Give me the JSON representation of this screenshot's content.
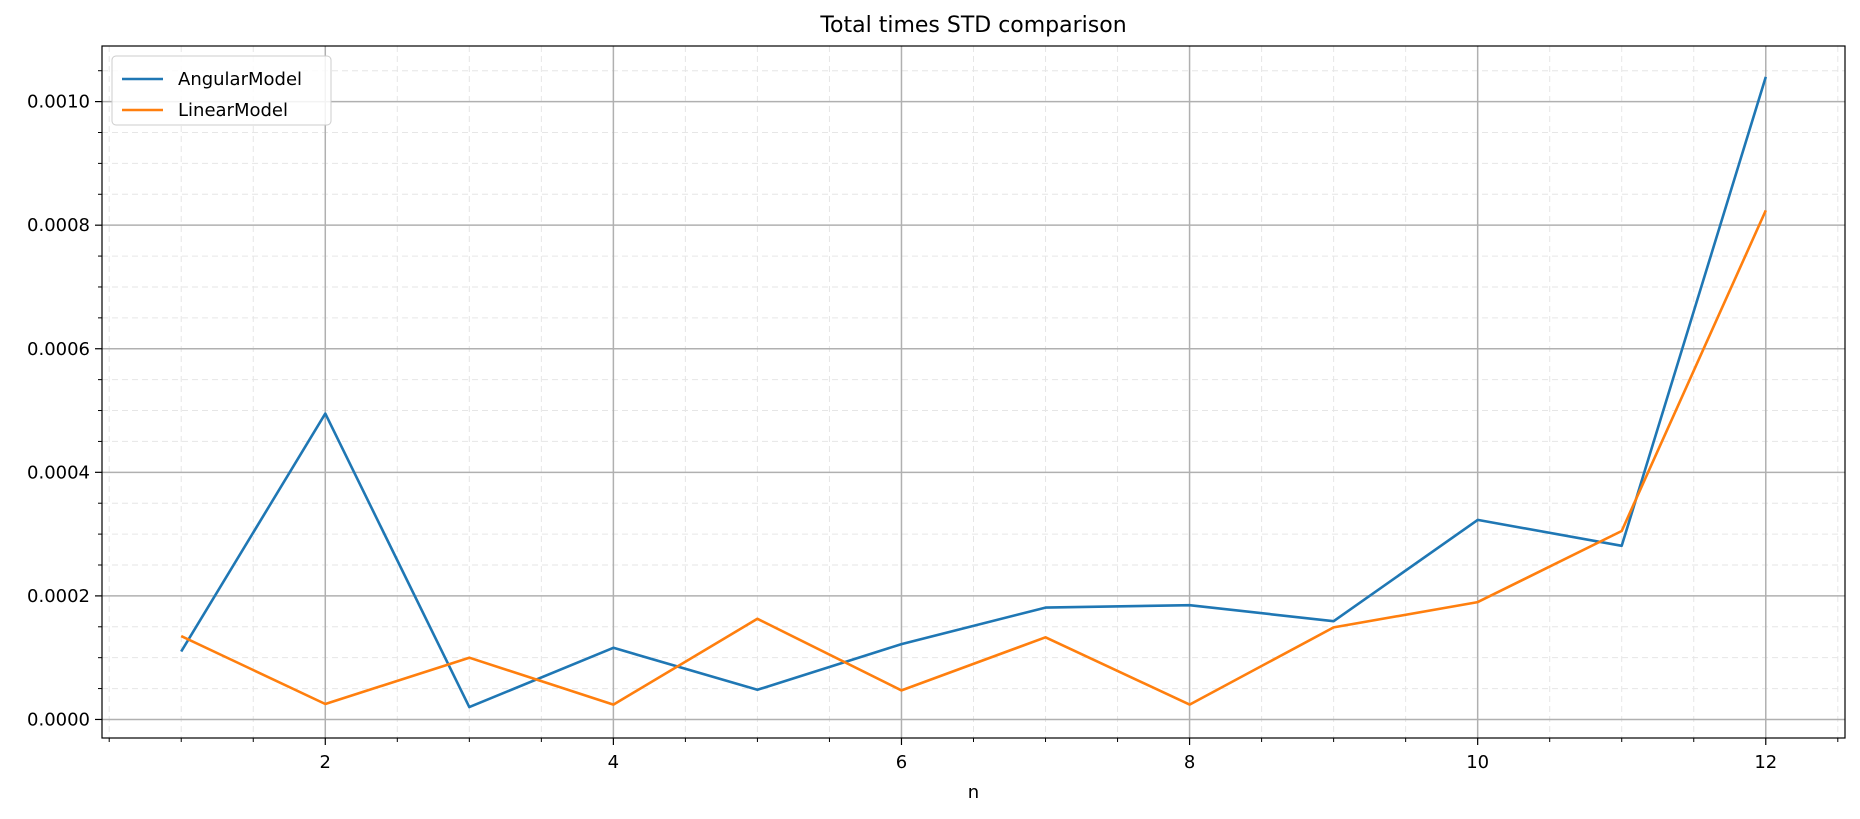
{
  "chart_data": {
    "type": "line",
    "title": "Total times STD comparison",
    "xlabel": "n",
    "ylabel": "",
    "xlim": [
      0.45,
      12.55
    ],
    "ylim": [
      -3e-05,
      0.00109
    ],
    "x": [
      1,
      2,
      3,
      4,
      5,
      6,
      7,
      8,
      9,
      10,
      11,
      12
    ],
    "x_ticks": [
      2,
      4,
      6,
      8,
      10,
      12
    ],
    "x_tick_labels": [
      "2",
      "4",
      "6",
      "8",
      "10",
      "12"
    ],
    "y_ticks": [
      0,
      0.0002,
      0.0004,
      0.0006,
      0.0008,
      0.001
    ],
    "y_tick_labels": [
      "0.0000",
      "0.0002",
      "0.0004",
      "0.0006",
      "0.0008",
      "0.0010"
    ],
    "grid": "major solid, minor dashed",
    "legend_position": "top-left",
    "series": [
      {
        "name": "AngularModel",
        "color": "#1f77b4",
        "values": [
          0.00011,
          0.000495,
          2e-05,
          0.000116,
          4.8e-05,
          0.000122,
          0.000181,
          0.000185,
          0.000159,
          0.000323,
          0.000281,
          0.00104
        ]
      },
      {
        "name": "LinearModel",
        "color": "#ff7f0e",
        "values": [
          0.000135,
          2.5e-05,
          0.0001,
          2.4e-05,
          0.000163,
          4.7e-05,
          0.000133,
          2.4e-05,
          0.000149,
          0.00019,
          0.000305,
          0.000824
        ]
      }
    ]
  }
}
